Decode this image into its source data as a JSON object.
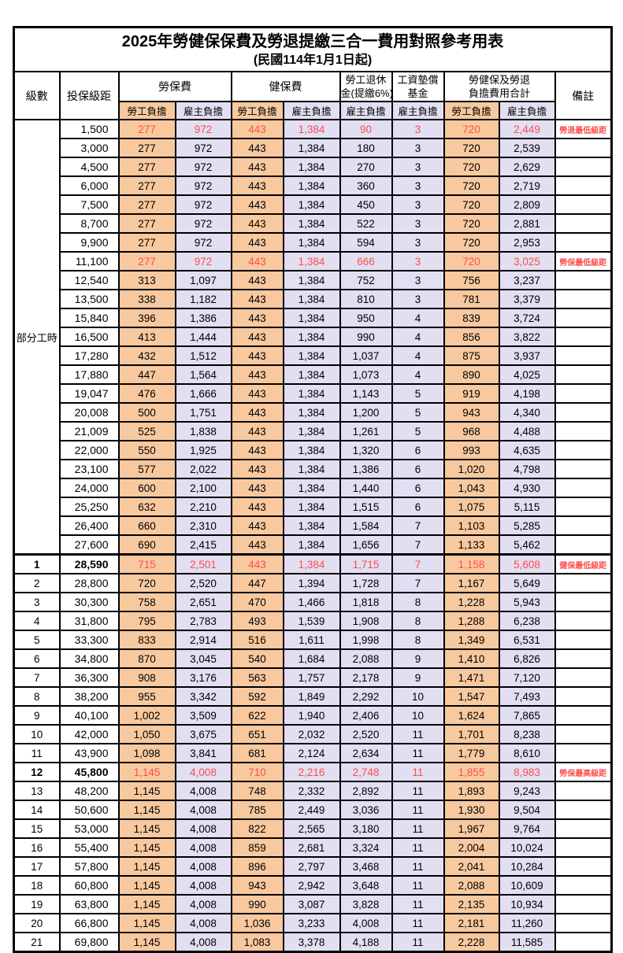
{
  "title": "2025年勞健保保費及勞退提繳三合一費用對照參考用表",
  "subtitle": "(民國114年1月1日起)",
  "header": {
    "level": "級數",
    "salary_bracket": "投保級距",
    "labor_insurance": "勞保費",
    "health_insurance": "健保費",
    "pension_line1": "勞工退休",
    "pension_line2": "金(提繳6%)",
    "wage_fund_line1": "工資墊償",
    "wage_fund_line2": "基金",
    "total_line1": "勞健保及勞退",
    "total_line2": "負擔費用合計",
    "remark": "備註",
    "employee_burden": "勞工負擔",
    "employer_burden": "雇主負擔"
  },
  "part_time_label": "部分工時",
  "colors": {
    "employee_col_bg": "#F8C99F",
    "employer_col_bg": "#E1DFF1",
    "highlight_red": "#FF4C4C",
    "border": "#000000"
  },
  "rows": [
    {
      "salary": "1,500",
      "v": [
        "277",
        "972",
        "443",
        "1,384",
        "90",
        "3",
        "720",
        "2,449"
      ],
      "red": true,
      "remark": "勞退最低級距"
    },
    {
      "salary": "3,000",
      "v": [
        "277",
        "972",
        "443",
        "1,384",
        "180",
        "3",
        "720",
        "2,539"
      ]
    },
    {
      "salary": "4,500",
      "v": [
        "277",
        "972",
        "443",
        "1,384",
        "270",
        "3",
        "720",
        "2,629"
      ]
    },
    {
      "salary": "6,000",
      "v": [
        "277",
        "972",
        "443",
        "1,384",
        "360",
        "3",
        "720",
        "2,719"
      ]
    },
    {
      "salary": "7,500",
      "v": [
        "277",
        "972",
        "443",
        "1,384",
        "450",
        "3",
        "720",
        "2,809"
      ]
    },
    {
      "salary": "8,700",
      "v": [
        "277",
        "972",
        "443",
        "1,384",
        "522",
        "3",
        "720",
        "2,881"
      ]
    },
    {
      "salary": "9,900",
      "v": [
        "277",
        "972",
        "443",
        "1,384",
        "594",
        "3",
        "720",
        "2,953"
      ]
    },
    {
      "salary": "11,100",
      "v": [
        "277",
        "972",
        "443",
        "1,384",
        "666",
        "3",
        "720",
        "3,025"
      ],
      "red": true,
      "remark": "勞保最低級距"
    },
    {
      "salary": "12,540",
      "v": [
        "313",
        "1,097",
        "443",
        "1,384",
        "752",
        "3",
        "756",
        "3,237"
      ]
    },
    {
      "salary": "13,500",
      "v": [
        "338",
        "1,182",
        "443",
        "1,384",
        "810",
        "3",
        "781",
        "3,379"
      ]
    },
    {
      "salary": "15,840",
      "v": [
        "396",
        "1,386",
        "443",
        "1,384",
        "950",
        "4",
        "839",
        "3,724"
      ]
    },
    {
      "salary": "16,500",
      "v": [
        "413",
        "1,444",
        "443",
        "1,384",
        "990",
        "4",
        "856",
        "3,822"
      ]
    },
    {
      "salary": "17,280",
      "v": [
        "432",
        "1,512",
        "443",
        "1,384",
        "1,037",
        "4",
        "875",
        "3,937"
      ]
    },
    {
      "salary": "17,880",
      "v": [
        "447",
        "1,564",
        "443",
        "1,384",
        "1,073",
        "4",
        "890",
        "4,025"
      ]
    },
    {
      "salary": "19,047",
      "v": [
        "476",
        "1,666",
        "443",
        "1,384",
        "1,143",
        "5",
        "919",
        "4,198"
      ]
    },
    {
      "salary": "20,008",
      "v": [
        "500",
        "1,751",
        "443",
        "1,384",
        "1,200",
        "5",
        "943",
        "4,340"
      ]
    },
    {
      "salary": "21,009",
      "v": [
        "525",
        "1,838",
        "443",
        "1,384",
        "1,261",
        "5",
        "968",
        "4,488"
      ]
    },
    {
      "salary": "22,000",
      "v": [
        "550",
        "1,925",
        "443",
        "1,384",
        "1,320",
        "6",
        "993",
        "4,635"
      ]
    },
    {
      "salary": "23,100",
      "v": [
        "577",
        "2,022",
        "443",
        "1,384",
        "1,386",
        "6",
        "1,020",
        "4,798"
      ]
    },
    {
      "salary": "24,000",
      "v": [
        "600",
        "2,100",
        "443",
        "1,384",
        "1,440",
        "6",
        "1,043",
        "4,930"
      ]
    },
    {
      "salary": "25,250",
      "v": [
        "632",
        "2,210",
        "443",
        "1,384",
        "1,515",
        "6",
        "1,075",
        "5,115"
      ]
    },
    {
      "salary": "26,400",
      "v": [
        "660",
        "2,310",
        "443",
        "1,384",
        "1,584",
        "7",
        "1,103",
        "5,285"
      ]
    },
    {
      "salary": "27,600",
      "v": [
        "690",
        "2,415",
        "443",
        "1,384",
        "1,656",
        "7",
        "1,133",
        "5,462"
      ]
    },
    {
      "level": "1",
      "salary": "28,590",
      "v": [
        "715",
        "2,501",
        "443",
        "1,384",
        "1,715",
        "7",
        "1,158",
        "5,608"
      ],
      "red": true,
      "bold": true,
      "remark": "健保最低級距",
      "thick_top": true
    },
    {
      "level": "2",
      "salary": "28,800",
      "v": [
        "720",
        "2,520",
        "447",
        "1,394",
        "1,728",
        "7",
        "1,167",
        "5,649"
      ]
    },
    {
      "level": "3",
      "salary": "30,300",
      "v": [
        "758",
        "2,651",
        "470",
        "1,466",
        "1,818",
        "8",
        "1,228",
        "5,943"
      ]
    },
    {
      "level": "4",
      "salary": "31,800",
      "v": [
        "795",
        "2,783",
        "493",
        "1,539",
        "1,908",
        "8",
        "1,288",
        "6,238"
      ]
    },
    {
      "level": "5",
      "salary": "33,300",
      "v": [
        "833",
        "2,914",
        "516",
        "1,611",
        "1,998",
        "8",
        "1,349",
        "6,531"
      ]
    },
    {
      "level": "6",
      "salary": "34,800",
      "v": [
        "870",
        "3,045",
        "540",
        "1,684",
        "2,088",
        "9",
        "1,410",
        "6,826"
      ]
    },
    {
      "level": "7",
      "salary": "36,300",
      "v": [
        "908",
        "3,176",
        "563",
        "1,757",
        "2,178",
        "9",
        "1,471",
        "7,120"
      ]
    },
    {
      "level": "8",
      "salary": "38,200",
      "v": [
        "955",
        "3,342",
        "592",
        "1,849",
        "2,292",
        "10",
        "1,547",
        "7,493"
      ]
    },
    {
      "level": "9",
      "salary": "40,100",
      "v": [
        "1,002",
        "3,509",
        "622",
        "1,940",
        "2,406",
        "10",
        "1,624",
        "7,865"
      ]
    },
    {
      "level": "10",
      "salary": "42,000",
      "v": [
        "1,050",
        "3,675",
        "651",
        "2,032",
        "2,520",
        "11",
        "1,701",
        "8,238"
      ]
    },
    {
      "level": "11",
      "salary": "43,900",
      "v": [
        "1,098",
        "3,841",
        "681",
        "2,124",
        "2,634",
        "11",
        "1,779",
        "8,610"
      ]
    },
    {
      "level": "12",
      "salary": "45,800",
      "v": [
        "1,145",
        "4,008",
        "710",
        "2,216",
        "2,748",
        "11",
        "1,855",
        "8,983"
      ],
      "red": true,
      "bold": true,
      "remark": "勞保最高級距"
    },
    {
      "level": "13",
      "salary": "48,200",
      "v": [
        "1,145",
        "4,008",
        "748",
        "2,332",
        "2,892",
        "11",
        "1,893",
        "9,243"
      ]
    },
    {
      "level": "14",
      "salary": "50,600",
      "v": [
        "1,145",
        "4,008",
        "785",
        "2,449",
        "3,036",
        "11",
        "1,930",
        "9,504"
      ]
    },
    {
      "level": "15",
      "salary": "53,000",
      "v": [
        "1,145",
        "4,008",
        "822",
        "2,565",
        "3,180",
        "11",
        "1,967",
        "9,764"
      ]
    },
    {
      "level": "16",
      "salary": "55,400",
      "v": [
        "1,145",
        "4,008",
        "859",
        "2,681",
        "3,324",
        "11",
        "2,004",
        "10,024"
      ]
    },
    {
      "level": "17",
      "salary": "57,800",
      "v": [
        "1,145",
        "4,008",
        "896",
        "2,797",
        "3,468",
        "11",
        "2,041",
        "10,284"
      ]
    },
    {
      "level": "18",
      "salary": "60,800",
      "v": [
        "1,145",
        "4,008",
        "943",
        "2,942",
        "3,648",
        "11",
        "2,088",
        "10,609"
      ]
    },
    {
      "level": "19",
      "salary": "63,800",
      "v": [
        "1,145",
        "4,008",
        "990",
        "3,087",
        "3,828",
        "11",
        "2,135",
        "10,934"
      ]
    },
    {
      "level": "20",
      "salary": "66,800",
      "v": [
        "1,145",
        "4,008",
        "1,036",
        "3,233",
        "4,008",
        "11",
        "2,181",
        "11,260"
      ]
    },
    {
      "level": "21",
      "salary": "69,800",
      "v": [
        "1,145",
        "4,008",
        "1,083",
        "3,378",
        "4,188",
        "11",
        "2,228",
        "11,585"
      ]
    }
  ]
}
